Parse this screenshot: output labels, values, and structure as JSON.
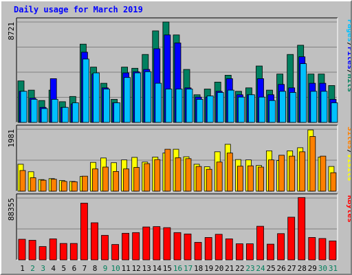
{
  "chart_data": {
    "type": "bar",
    "title": "Daily usage for March 2019",
    "categories": [
      "1",
      "2",
      "3",
      "4",
      "5",
      "6",
      "7",
      "8",
      "9",
      "10",
      "11",
      "12",
      "13",
      "14",
      "15",
      "16",
      "17",
      "18",
      "19",
      "20",
      "21",
      "22",
      "23",
      "24",
      "25",
      "26",
      "27",
      "28",
      "29",
      "30",
      "31"
    ],
    "weekend_days": [
      "2",
      "3",
      "9",
      "10",
      "16",
      "17",
      "23",
      "24",
      "30",
      "31"
    ],
    "panels": [
      {
        "id": "hits",
        "max_label": "8721",
        "ylim": [
          0,
          8721
        ],
        "legend": [
          {
            "text": "Pages",
            "color": "#00c0ff"
          },
          {
            "text": "Files",
            "color": "#0000ff"
          },
          {
            "text": "Hits",
            "color": "#00805c"
          }
        ],
        "series": [
          {
            "name": "Hits",
            "color": "#008060",
            "values": [
              3600,
              2800,
              1900,
              2800,
              1800,
              2250,
              6800,
              4800,
              3400,
              2000,
              4800,
              4700,
              5900,
              7950,
              8720,
              7600,
              4600,
              2400,
              2900,
              3500,
              4100,
              2700,
              3000,
              4900,
              2800,
              4200,
              5900,
              6700,
              4200,
              4200,
              3200
            ]
          },
          {
            "name": "Files",
            "color": "#0000ff",
            "values": [
              2700,
              2100,
              1300,
              3800,
              1300,
              1600,
              6100,
              4200,
              3000,
              1700,
              4300,
              4400,
              4600,
              6400,
              7600,
              6900,
              3000,
              2200,
              2200,
              2700,
              3800,
              2400,
              2400,
              3800,
              2400,
              3300,
              3000,
              5700,
              3400,
              3400,
              2000
            ]
          },
          {
            "name": "Pages",
            "color": "#00c0ff",
            "values": [
              2700,
              2000,
              1200,
              2000,
              1300,
              1700,
              5500,
              4300,
              2900,
              1700,
              3900,
              4300,
              4400,
              3400,
              2900,
              2900,
              2900,
              2000,
              2300,
              2600,
              2800,
              2200,
              2400,
              2200,
              1900,
              2700,
              2600,
              5100,
              2700,
              2700,
              1700
            ]
          }
        ]
      },
      {
        "id": "visits",
        "max_label": "1981",
        "ylim": [
          0,
          1981
        ],
        "legend": [
          {
            "text": "Sites",
            "color": "#ff8000"
          },
          {
            "text": "Visits",
            "color": "#ffff00"
          }
        ],
        "series": [
          {
            "name": "Visits",
            "color": "#ffff00",
            "values": [
              860,
              620,
              370,
              400,
              340,
              310,
              470,
              920,
              1060,
              910,
              1000,
              1080,
              930,
              1090,
              1220,
              1340,
              1100,
              860,
              780,
              1260,
              1500,
              1010,
              1000,
              820,
              1290,
              980,
              1290,
              1390,
              1960,
              1090,
              790
            ]
          },
          {
            "name": "Sites",
            "color": "#ff8000",
            "values": [
              660,
              430,
              350,
              380,
              310,
              300,
              480,
              710,
              770,
              630,
              710,
              760,
              880,
              1010,
              1340,
              1070,
              1040,
              790,
              700,
              930,
              1220,
              800,
              810,
              770,
              1000,
              1150,
              1120,
              1260,
              1750,
              1120,
              590
            ]
          }
        ]
      },
      {
        "id": "kbytes",
        "max_label": "88355",
        "ylim": [
          0,
          88355
        ],
        "legend": [
          {
            "text": "KBytes",
            "color": "#ff0000"
          }
        ],
        "series": [
          {
            "name": "KBytes",
            "color": "#ff0000",
            "values": [
              29500,
              28000,
              19000,
              30000,
              23500,
              23500,
              81000,
              53000,
              35000,
              22000,
              38000,
              39000,
              47000,
              47500,
              46000,
              39000,
              37000,
              25000,
              32000,
              36500,
              30000,
              23000,
              23000,
              48000,
              22500,
              37500,
              61000,
              89000,
              32000,
              30500,
              27000
            ]
          }
        ]
      }
    ]
  }
}
